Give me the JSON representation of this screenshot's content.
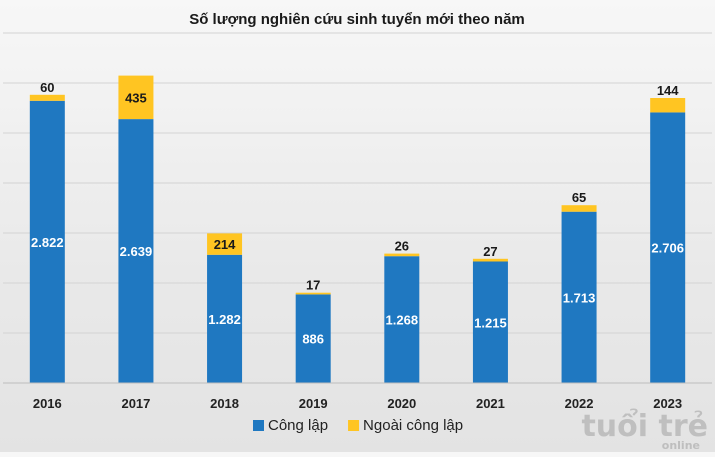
{
  "chart_data": {
    "type": "bar",
    "stacked": true,
    "title": "Số lượng nghiên cứu sinh tuyển mới theo năm",
    "categories": [
      "2016",
      "2017",
      "2018",
      "2019",
      "2020",
      "2021",
      "2022",
      "2023"
    ],
    "series": [
      {
        "name": "Công lập",
        "color": "#1f78c1",
        "values": [
          2822,
          2639,
          1282,
          886,
          1268,
          1215,
          1713,
          2706
        ],
        "labels": [
          "2.822",
          "2.639",
          "1.282",
          "886",
          "1.268",
          "1.215",
          "1.713",
          "2.706"
        ]
      },
      {
        "name": "Ngoài công lập",
        "color": "#ffc522",
        "values": [
          60,
          435,
          214,
          17,
          26,
          27,
          65,
          144
        ],
        "labels": [
          "60",
          "435",
          "214",
          "17",
          "26",
          "27",
          "65",
          "144"
        ]
      }
    ],
    "ylim": [
      0,
      3500
    ],
    "grid": true,
    "legend_position": "bottom-center"
  },
  "watermark": {
    "text": "tuổi trẻ",
    "subtext": "online",
    "icon": "tuoi-tre-logo"
  }
}
